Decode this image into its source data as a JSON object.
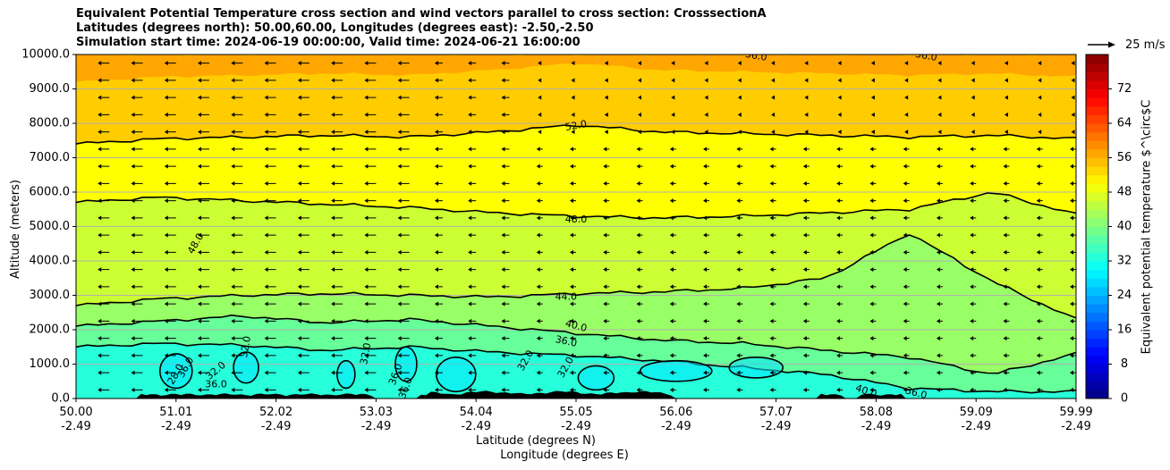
{
  "chart_data": {
    "type": "contour",
    "title_lines": [
      "Equivalent Potential Temperature cross section and wind vectors parallel to cross section: CrosssectionA",
      "Latitudes (degrees north): 50.00,60.00, Longitudes (degrees east): -2.50,-2.50",
      "Simulation start time: 2024-06-19 00:00:00, Valid time: 2024-06-21 16:00:00"
    ],
    "ylabel": "Altitude (meters)",
    "xlabel_lat": "Latitude (degrees N)",
    "xlabel_lon": "Longitude (degrees E)",
    "ylim": [
      0,
      10000
    ],
    "xlim": [
      50.0,
      59.99
    ],
    "y_ticks": [
      "0.0",
      "1000.0",
      "2000.0",
      "3000.0",
      "4000.0",
      "5000.0",
      "6000.0",
      "7000.0",
      "8000.0",
      "9000.0",
      "10000.0"
    ],
    "x_ticks": [
      {
        "lat": "50.00",
        "lon": "-2.49"
      },
      {
        "lat": "51.01",
        "lon": "-2.49"
      },
      {
        "lat": "52.02",
        "lon": "-2.49"
      },
      {
        "lat": "53.03",
        "lon": "-2.49"
      },
      {
        "lat": "54.04",
        "lon": "-2.49"
      },
      {
        "lat": "55.05",
        "lon": "-2.49"
      },
      {
        "lat": "56.06",
        "lon": "-2.49"
      },
      {
        "lat": "57.07",
        "lon": "-2.49"
      },
      {
        "lat": "58.08",
        "lon": "-2.49"
      },
      {
        "lat": "59.09",
        "lon": "-2.49"
      },
      {
        "lat": "59.99",
        "lon": "-2.49"
      }
    ],
    "colorbar": {
      "label": "Equivalent potential temperature $^\\circ$C",
      "ticks": [
        "0",
        "8",
        "16",
        "24",
        "32",
        "40",
        "48",
        "56",
        "64",
        "72"
      ],
      "range": [
        0,
        80
      ],
      "colormap": "jet"
    },
    "contour_levels": [
      "28.0",
      "32.0",
      "36.0",
      "40.0",
      "44.0",
      "48.0",
      "52.0",
      "56.0"
    ],
    "contour_lines": [
      {
        "level": "52.0",
        "alt": [
          7400,
          7550,
          7600,
          7650,
          7600,
          7750,
          7950,
          7750,
          7700,
          7650,
          7600,
          7650,
          7550
        ]
      },
      {
        "level": "48.0",
        "alt": [
          5700,
          5850,
          5750,
          5650,
          5550,
          5400,
          5300,
          5250,
          5300,
          5400,
          5500,
          6000,
          5350
        ]
      },
      {
        "level": "44.0",
        "alt": [
          2700,
          2900,
          3000,
          3050,
          3000,
          2950,
          3050,
          3100,
          3200,
          3500,
          4800,
          3400,
          2300
        ]
      },
      {
        "level": "40.0",
        "alt": [
          2100,
          2250,
          2400,
          2200,
          2300,
          2100,
          1900,
          1700,
          1600,
          1400,
          1200,
          700,
          1300
        ]
      },
      {
        "level": "36.0",
        "alt": [
          1500,
          1600,
          1550,
          1400,
          1500,
          1350,
          1250,
          1100,
          900,
          700,
          300,
          200,
          200
        ]
      }
    ],
    "wind_vectors": {
      "reference_label": "25 m/s",
      "direction": "southward (toward lower latitude)"
    },
    "annotations": [
      "56.0",
      "56.0",
      "52.0",
      "48.0",
      "48.0",
      "44.0",
      "40.0",
      "36.0",
      "32.0",
      "36.0",
      "28.0",
      "32.0",
      "36.0",
      "32.0",
      "36.0",
      "36.0",
      "32.0",
      "32.0",
      "40.0",
      "36.0"
    ]
  }
}
